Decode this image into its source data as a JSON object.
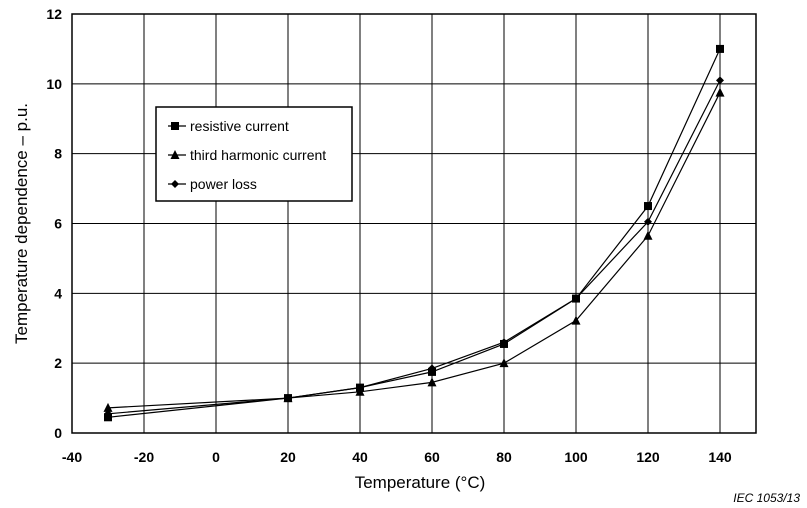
{
  "chart_data": {
    "type": "line",
    "xlabel": "Temperature   (°C)",
    "ylabel": "Temperature dependence – p.u.",
    "xlim": [
      -40,
      150
    ],
    "ylim": [
      0,
      12
    ],
    "xticks": [
      -40,
      -20,
      0,
      20,
      40,
      60,
      80,
      100,
      120,
      140
    ],
    "yticks": [
      0,
      2,
      4,
      6,
      8,
      10,
      12
    ],
    "grid": true,
    "legend_position": "upper-left",
    "x": [
      -30,
      20,
      40,
      60,
      80,
      100,
      120,
      140
    ],
    "series": [
      {
        "name": "resistive current",
        "marker": "square",
        "values": [
          0.45,
          1.0,
          1.3,
          1.75,
          2.55,
          3.85,
          6.5,
          11.0
        ]
      },
      {
        "name": "third harmonic current",
        "marker": "triangle",
        "values": [
          0.72,
          1.0,
          1.18,
          1.45,
          2.0,
          3.22,
          5.65,
          9.75
        ]
      },
      {
        "name": "power loss",
        "marker": "diamond",
        "values": [
          0.55,
          1.0,
          1.3,
          1.85,
          2.6,
          3.85,
          6.05,
          10.1
        ]
      }
    ],
    "reference_label": "IEC   1053/13"
  }
}
